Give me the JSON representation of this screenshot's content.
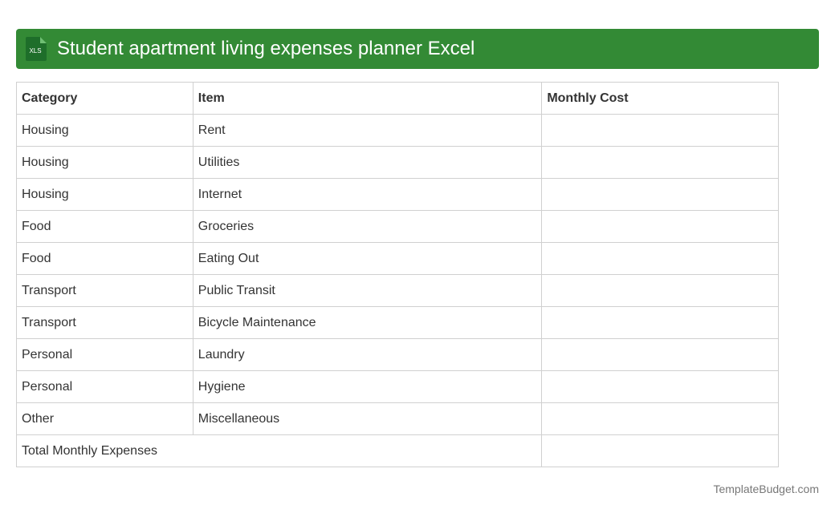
{
  "header": {
    "icon_label": "XLS",
    "title": "Student apartment living expenses planner Excel"
  },
  "table": {
    "columns": [
      "Category",
      "Item",
      "Monthly Cost"
    ],
    "rows": [
      [
        "Housing",
        "Rent"
      ],
      [
        "Housing",
        "Utilities"
      ],
      [
        "Housing",
        "Internet"
      ],
      [
        "Food",
        "Groceries"
      ],
      [
        "Food",
        "Eating Out"
      ],
      [
        "Transport",
        "Public Transit"
      ],
      [
        "Transport",
        "Bicycle Maintenance"
      ],
      [
        "Personal",
        "Laundry"
      ],
      [
        "Personal",
        "Hygiene"
      ],
      [
        "Other",
        "Miscellaneous"
      ]
    ],
    "total_label": "Total Monthly Expenses"
  },
  "footer": {
    "site": "TemplateBudget.com"
  }
}
